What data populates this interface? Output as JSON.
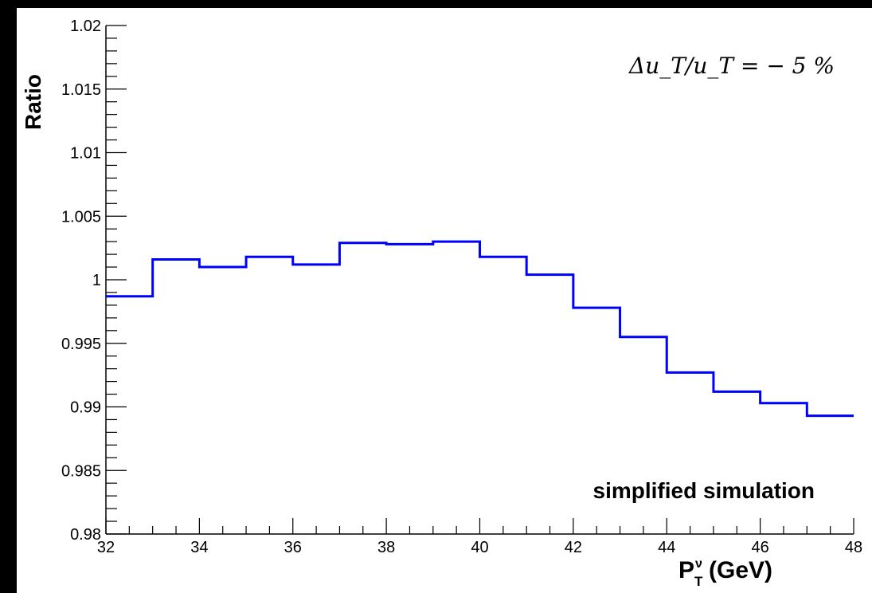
{
  "chart_data": {
    "type": "line",
    "style": "step-histogram",
    "ylabel": "Ratio",
    "xlabel": {
      "base": "P",
      "sub": "T",
      "sup": "ν",
      "unit": "(GeV)"
    },
    "xlim": [
      32,
      48
    ],
    "ylim": [
      0.98,
      1.02
    ],
    "x_ticks": [
      32,
      34,
      36,
      38,
      40,
      42,
      44,
      46,
      48
    ],
    "x_tick_labels": [
      "32",
      "34",
      "36",
      "38",
      "40",
      "42",
      "44",
      "46",
      "48"
    ],
    "y_ticks": [
      0.98,
      0.985,
      0.99,
      0.995,
      1.0,
      1.005,
      1.01,
      1.015,
      1.02
    ],
    "y_tick_labels": [
      "0.98",
      "0.985",
      "0.99",
      "0.995",
      "1",
      "1.005",
      "1.01",
      "1.015",
      "1.02"
    ],
    "bin_edges": [
      32,
      33,
      34,
      35,
      36,
      37,
      38,
      39,
      40,
      41,
      42,
      43,
      44,
      45,
      46,
      47,
      48
    ],
    "values": [
      0.9987,
      1.0016,
      1.001,
      1.0018,
      1.0012,
      1.0029,
      1.0028,
      1.003,
      1.0018,
      1.0004,
      0.9978,
      0.9955,
      0.9927,
      0.9912,
      0.9903,
      0.9893
    ],
    "line_color": "#0000ff",
    "grid": false,
    "annotations": {
      "formula": "Δu_T/u_T = − 5 %",
      "text": "simplified simulation"
    }
  }
}
